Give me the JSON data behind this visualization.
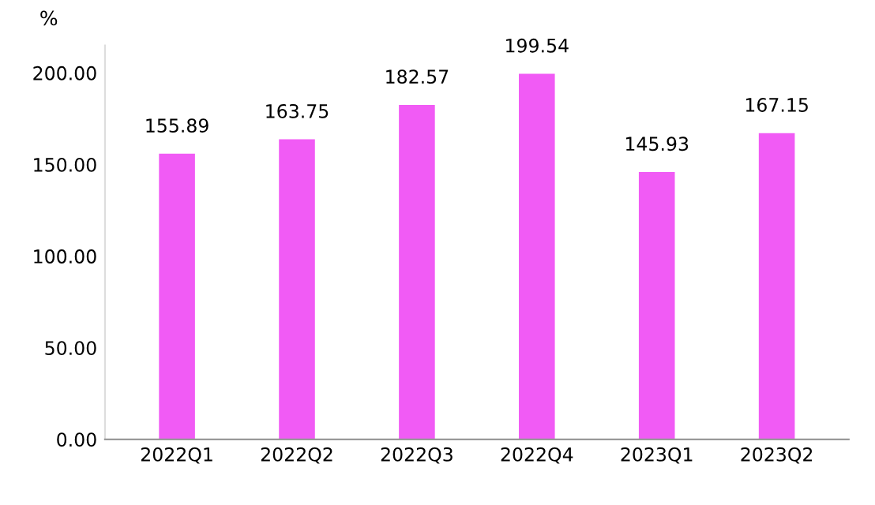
{
  "chart_data": {
    "type": "bar",
    "ylabel": "%",
    "categories": [
      "2022Q1",
      "2022Q2",
      "2022Q3",
      "2022Q4",
      "2023Q1",
      "2023Q2"
    ],
    "values": [
      155.89,
      163.75,
      182.57,
      199.54,
      145.93,
      167.15
    ],
    "color": "#f15bf5",
    "ylim": [
      0,
      215
    ],
    "yticks": [
      {
        "value": 0,
        "label": "0.00"
      },
      {
        "value": 50,
        "label": "50.00"
      },
      {
        "value": 100,
        "label": "100.00"
      },
      {
        "value": 150,
        "label": "150.00"
      },
      {
        "value": 200,
        "label": "200.00"
      }
    ],
    "data_labels": true,
    "grid": false,
    "legend": false
  }
}
